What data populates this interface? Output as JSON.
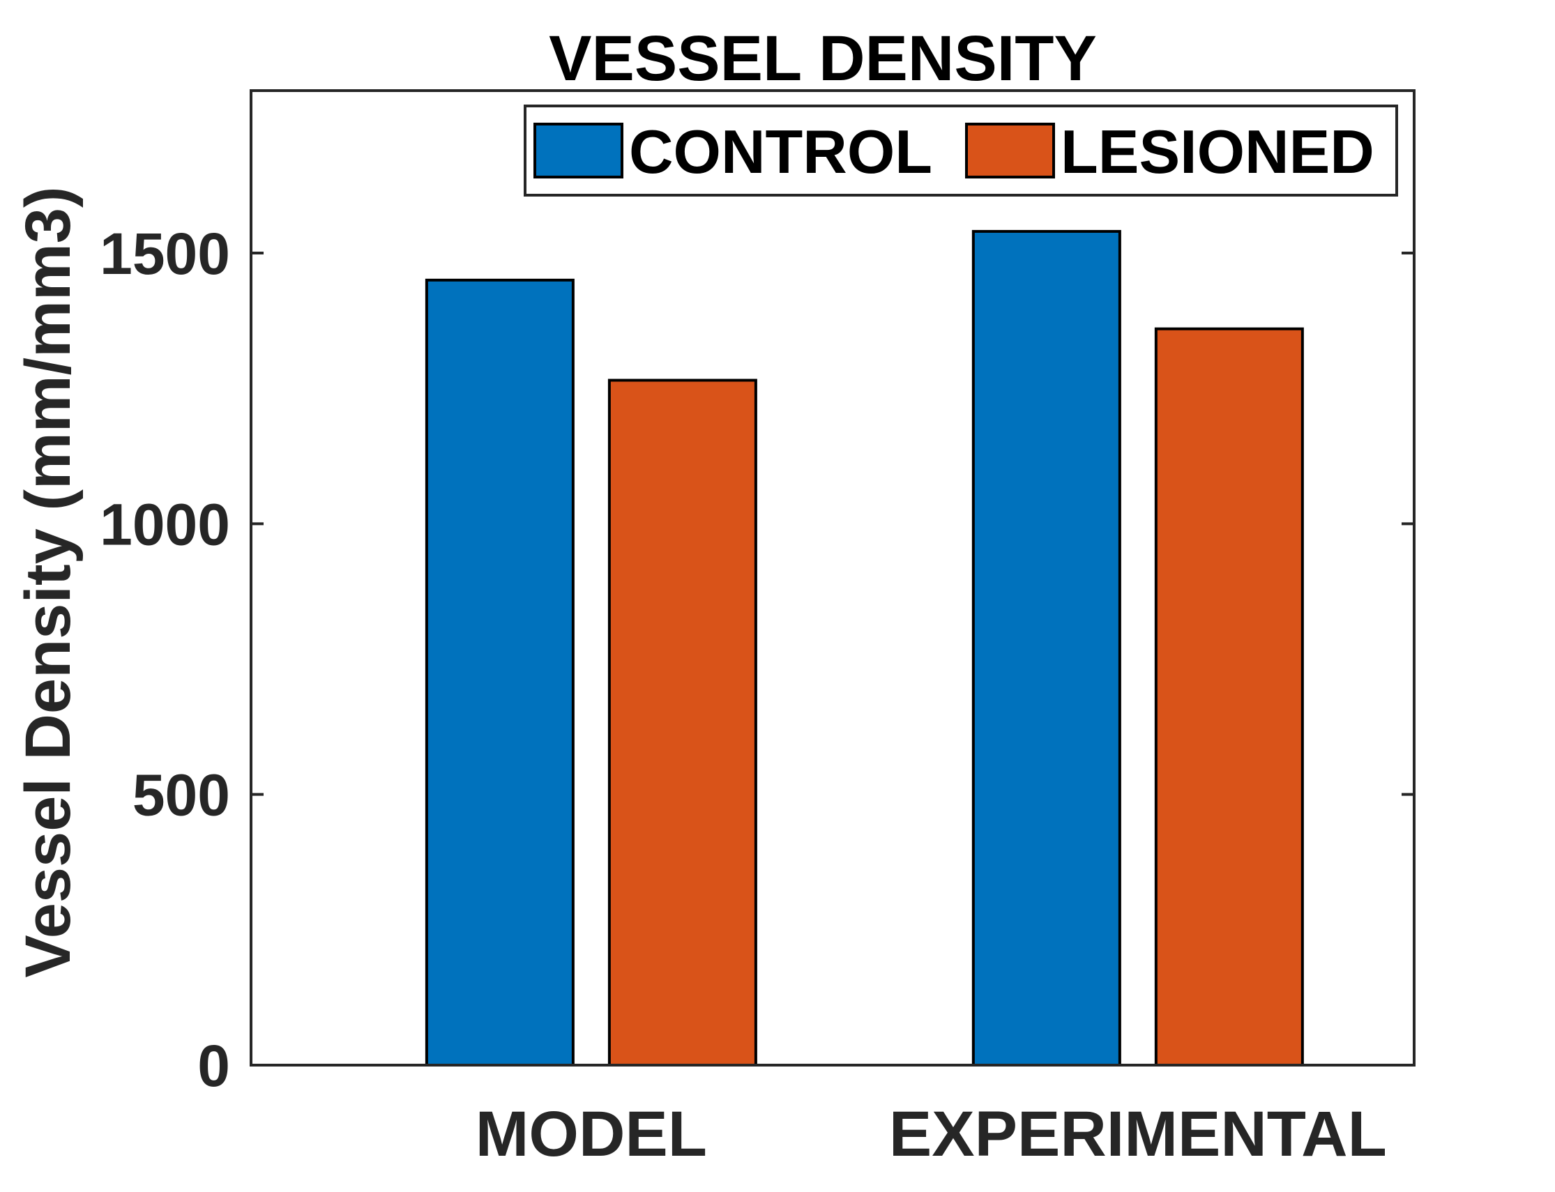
{
  "chart_data": {
    "type": "bar",
    "title": "VESSEL DENSITY",
    "ylabel": "Vessel Density (mm/mm3)",
    "xlabel": "",
    "categories": [
      "MODEL",
      "EXPERIMENTAL"
    ],
    "series": [
      {
        "name": "CONTROL",
        "color": "#0072BD",
        "values": [
          1450,
          1540
        ]
      },
      {
        "name": "LESIONED",
        "color": "#D95319",
        "values": [
          1265,
          1360
        ]
      }
    ],
    "ylim": [
      0,
      1800
    ],
    "yticks": [
      0,
      500,
      1000,
      1500
    ],
    "ytick_labels": [
      "0",
      "500",
      "1000",
      "1500"
    ],
    "grid": false,
    "legend_position": "top-right",
    "legend_orientation": "horizontal"
  }
}
